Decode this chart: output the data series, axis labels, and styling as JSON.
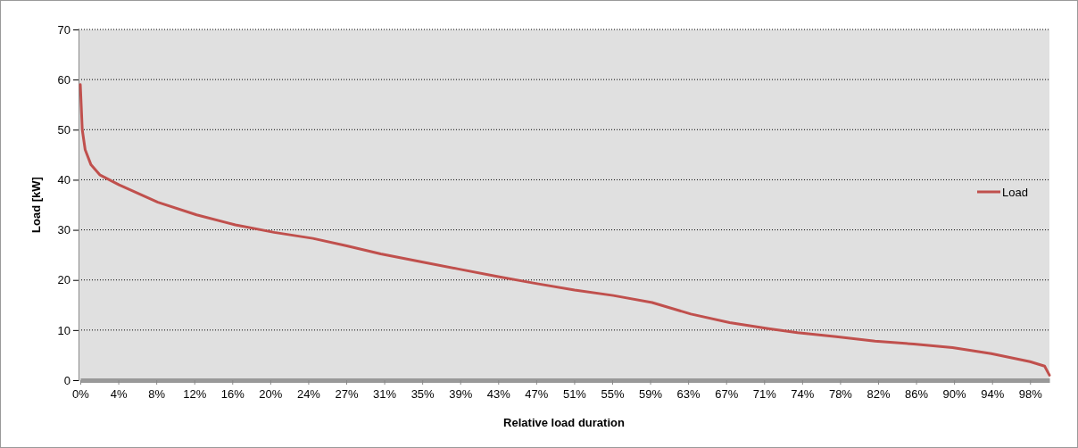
{
  "chart_data": {
    "type": "line",
    "xlabel": "Relative load duration",
    "ylabel": "Load [kW]",
    "x": [
      0,
      0.2,
      0.5,
      1.1,
      2,
      4,
      8,
      12,
      16,
      20,
      24,
      27.5,
      31,
      35,
      39,
      43,
      47,
      51,
      55,
      59,
      63,
      67,
      71,
      74,
      78,
      82,
      86,
      90,
      94,
      98,
      99.5,
      100
    ],
    "series": [
      {
        "name": "Load",
        "color": "#c0504d",
        "values": [
          59,
          50,
          46,
          43,
          41,
          39,
          35.5,
          33,
          31,
          29.5,
          28.3,
          26.8,
          25.2,
          23.7,
          22.2,
          20.7,
          19.3,
          18,
          16.9,
          15.5,
          13.2,
          11.5,
          10.3,
          9.5,
          8.7,
          7.8,
          7.2,
          6.5,
          5.3,
          3.7,
          2.8,
          1
        ]
      }
    ],
    "xlim": [
      0,
      100
    ],
    "xticks": [
      {
        "value": 0,
        "label": "0%"
      },
      {
        "value": 3.92,
        "label": "4%"
      },
      {
        "value": 7.84,
        "label": "8%"
      },
      {
        "value": 11.76,
        "label": "12%"
      },
      {
        "value": 15.68,
        "label": "16%"
      },
      {
        "value": 19.6,
        "label": "20%"
      },
      {
        "value": 23.52,
        "label": "24%"
      },
      {
        "value": 27.44,
        "label": "27%"
      },
      {
        "value": 31.36,
        "label": "31%"
      },
      {
        "value": 35.28,
        "label": "35%"
      },
      {
        "value": 39.2,
        "label": "39%"
      },
      {
        "value": 43.12,
        "label": "43%"
      },
      {
        "value": 47.04,
        "label": "47%"
      },
      {
        "value": 50.96,
        "label": "51%"
      },
      {
        "value": 54.88,
        "label": "55%"
      },
      {
        "value": 58.8,
        "label": "59%"
      },
      {
        "value": 62.72,
        "label": "63%"
      },
      {
        "value": 66.64,
        "label": "67%"
      },
      {
        "value": 70.56,
        "label": "71%"
      },
      {
        "value": 74.48,
        "label": "74%"
      },
      {
        "value": 78.4,
        "label": "78%"
      },
      {
        "value": 82.32,
        "label": "82%"
      },
      {
        "value": 86.24,
        "label": "86%"
      },
      {
        "value": 90.16,
        "label": "90%"
      },
      {
        "value": 94.08,
        "label": "94%"
      },
      {
        "value": 98,
        "label": "98%"
      }
    ],
    "ylim": [
      0,
      70
    ],
    "yticks": [
      0,
      10,
      20,
      30,
      40,
      50,
      60,
      70
    ],
    "grid": "y",
    "legend": "right",
    "marker": "none",
    "line_style": "solid"
  }
}
